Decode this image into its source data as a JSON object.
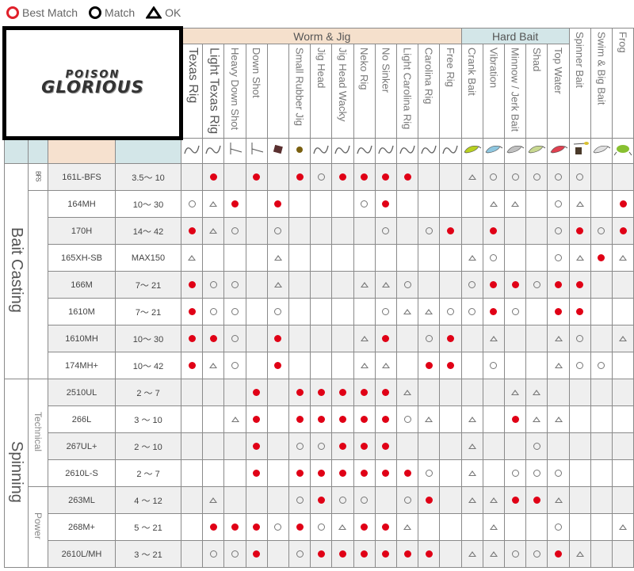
{
  "legend": [
    {
      "key": "B",
      "label": "Best Match",
      "color": "#e0202a"
    },
    {
      "key": "M",
      "label": "Match",
      "color": "#000000"
    },
    {
      "key": "O",
      "label": "OK",
      "color": "#000000"
    }
  ],
  "logo": {
    "line1": "POISON",
    "line2": "GLORIOUS"
  },
  "groups": [
    {
      "label": "Worm & Jig",
      "span": 13,
      "color": "#f5e0cc"
    },
    {
      "label": "Hard Bait",
      "span": 5,
      "color": "#d3e6e8"
    }
  ],
  "columns": [
    {
      "label": "Texas Rig",
      "icon": "hook-worm-icon",
      "big": true
    },
    {
      "label": "Light Texas Rig",
      "icon": "hook-worm-icon",
      "big": true
    },
    {
      "label": "Heavy Down Shot",
      "icon": "down-shot-icon"
    },
    {
      "label": "Down Shot",
      "icon": "down-shot-icon"
    },
    {
      "label": "",
      "icon": "rubber-jig-icon"
    },
    {
      "label": "Small Rubber Jig",
      "icon": "small-jig-icon"
    },
    {
      "label": "Jig Head",
      "icon": "jig-head-icon"
    },
    {
      "label": "Jig Head Wacky",
      "icon": "wacky-icon"
    },
    {
      "label": "Neko Rig",
      "icon": "neko-icon"
    },
    {
      "label": "No Sinker",
      "icon": "worm-icon"
    },
    {
      "label": "Light Carolina Rig",
      "icon": "carolina-icon"
    },
    {
      "label": "Carolina Rig",
      "icon": "carolina-icon"
    },
    {
      "label": "Free Rig",
      "icon": "free-rig-icon"
    },
    {
      "label": "Crank Bait",
      "icon": "crank-bait-icon",
      "color": "#b8d020"
    },
    {
      "label": "Vibration",
      "icon": "vibration-icon",
      "color": "#8ec7e0"
    },
    {
      "label": "Minnow / Jerk Bait",
      "icon": "minnow-icon",
      "color": "#c0c0c0"
    },
    {
      "label": "Shad",
      "icon": "shad-icon",
      "color": "#c8d890"
    },
    {
      "label": "Top Water",
      "icon": "top-water-icon",
      "color": "#e04050"
    },
    {
      "label": "Spinner Bait",
      "icon": "spinner-bait-icon",
      "color": "#d8c030"
    },
    {
      "label": "Swim & Big Bait",
      "icon": "swim-bait-icon",
      "color": "#e0e0e0"
    },
    {
      "label": "Frog",
      "icon": "frog-icon",
      "color": "#88c030"
    }
  ],
  "sections": [
    {
      "label": "Bait Casting",
      "rows": 8,
      "subs": [
        {
          "label": "BFS",
          "rows": 1,
          "small": true
        },
        {
          "label": "",
          "rows": 7
        }
      ]
    },
    {
      "label": "Spinning",
      "rows": 7,
      "subs": [
        {
          "label": "Technical",
          "rows": 4
        },
        {
          "label": "Power",
          "rows": 3
        }
      ]
    }
  ],
  "rows": [
    {
      "model": "161L-BFS",
      "weight": "3.5～ 10",
      "marks": [
        "",
        "B",
        "",
        "B",
        "",
        "B",
        "M",
        "B",
        "B",
        "B",
        "B",
        "",
        "",
        "O",
        "M",
        "M",
        "M",
        "M",
        "M",
        "",
        ""
      ]
    },
    {
      "model": "164MH",
      "weight": "10～ 30",
      "marks": [
        "M",
        "O",
        "B",
        "",
        "B",
        "",
        "",
        "",
        "M",
        "B",
        "",
        "",
        "",
        "",
        "O",
        "O",
        "",
        "M",
        "O",
        "",
        "B"
      ]
    },
    {
      "model": "170H",
      "weight": "14～ 42",
      "marks": [
        "B",
        "O",
        "M",
        "",
        "M",
        "",
        "",
        "",
        "",
        "M",
        "",
        "M",
        "B",
        "",
        "B",
        "",
        "",
        "M",
        "B",
        "M",
        "B"
      ]
    },
    {
      "model": "165XH-SB",
      "weight": "MAX150",
      "marks": [
        "O",
        "",
        "",
        "",
        "O",
        "",
        "",
        "",
        "",
        "",
        "",
        "",
        "",
        "O",
        "M",
        "",
        "",
        "M",
        "O",
        "B",
        "O"
      ]
    },
    {
      "model": "166M",
      "weight": "7～ 21",
      "marks": [
        "B",
        "M",
        "M",
        "",
        "O",
        "",
        "",
        "",
        "O",
        "O",
        "M",
        "",
        "",
        "M",
        "B",
        "B",
        "M",
        "B",
        "B",
        "",
        ""
      ]
    },
    {
      "model": "1610M",
      "weight": "7～ 21",
      "marks": [
        "B",
        "M",
        "M",
        "",
        "M",
        "",
        "",
        "",
        "",
        "M",
        "O",
        "O",
        "M",
        "M",
        "B",
        "M",
        "",
        "B",
        "B",
        "",
        ""
      ]
    },
    {
      "model": "1610MH",
      "weight": "10～ 30",
      "marks": [
        "B",
        "B",
        "M",
        "",
        "B",
        "",
        "",
        "",
        "O",
        "B",
        "",
        "M",
        "B",
        "",
        "O",
        "",
        "",
        "O",
        "M",
        "",
        "O"
      ]
    },
    {
      "model": "174MH+",
      "weight": "10～ 42",
      "marks": [
        "B",
        "O",
        "M",
        "",
        "B",
        "",
        "",
        "",
        "O",
        "O",
        "",
        "B",
        "B",
        "",
        "M",
        "",
        "",
        "O",
        "M",
        "M",
        ""
      ]
    },
    {
      "model": "2510UL",
      "weight": "2 ～ 7",
      "marks": [
        "",
        "",
        "",
        "B",
        "",
        "B",
        "B",
        "B",
        "B",
        "B",
        "O",
        "",
        "",
        "",
        "",
        "O",
        "O",
        "",
        "",
        "",
        ""
      ]
    },
    {
      "model": "266L",
      "weight": "3 ～ 10",
      "marks": [
        "",
        "",
        "O",
        "B",
        "",
        "B",
        "B",
        "B",
        "B",
        "B",
        "M",
        "O",
        "",
        "O",
        "",
        "B",
        "O",
        "O",
        "",
        "",
        ""
      ]
    },
    {
      "model": "267UL+",
      "weight": "2 ～ 10",
      "marks": [
        "",
        "",
        "",
        "B",
        "",
        "M",
        "M",
        "B",
        "B",
        "B",
        "",
        "",
        "",
        "O",
        "",
        "",
        "M",
        "",
        "",
        "",
        ""
      ]
    },
    {
      "model": "2610L-S",
      "weight": "2 ～ 7",
      "marks": [
        "",
        "",
        "",
        "B",
        "",
        "B",
        "B",
        "B",
        "B",
        "B",
        "B",
        "M",
        "",
        "O",
        "",
        "M",
        "M",
        "M",
        "",
        "",
        ""
      ]
    },
    {
      "model": "263ML",
      "weight": "4 ～ 12",
      "marks": [
        "",
        "O",
        "",
        "",
        "",
        "M",
        "B",
        "M",
        "M",
        "",
        "M",
        "B",
        "",
        "O",
        "O",
        "B",
        "B",
        "O",
        "",
        "",
        ""
      ]
    },
    {
      "model": "268M+",
      "weight": "5 ～ 21",
      "marks": [
        "",
        "B",
        "B",
        "B",
        "M",
        "B",
        "M",
        "O",
        "B",
        "B",
        "O",
        "",
        "",
        "",
        "O",
        "",
        "",
        "M",
        "",
        "",
        "O"
      ]
    },
    {
      "model": "2610L/MH",
      "weight": "3 ～ 21",
      "marks": [
        "",
        "M",
        "M",
        "B",
        "",
        "M",
        "B",
        "B",
        "B",
        "B",
        "B",
        "B",
        "",
        "O",
        "O",
        "M",
        "M",
        "B",
        "O",
        "",
        ""
      ]
    }
  ]
}
